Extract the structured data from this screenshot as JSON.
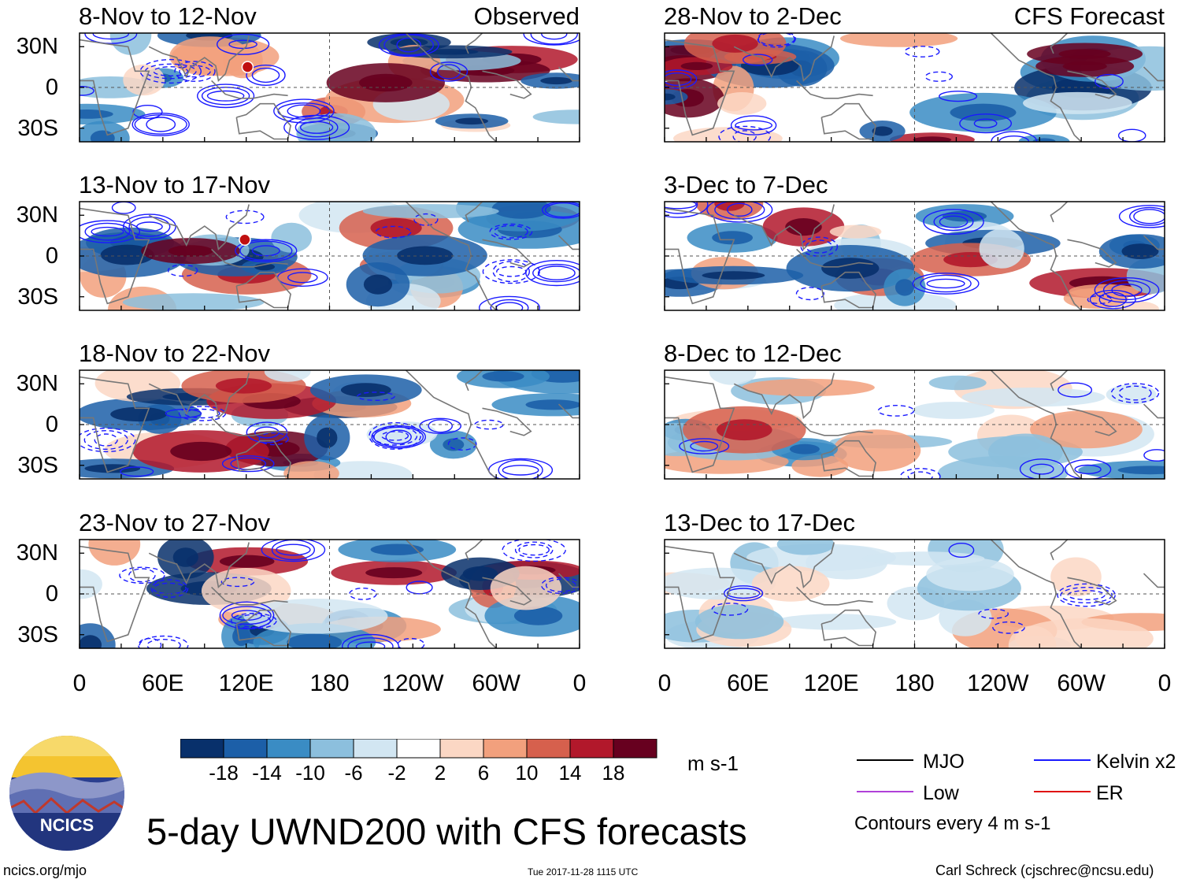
{
  "chart_data": {
    "type": "heatmap",
    "title": "5-day UWND200 with CFS forecasts",
    "variable": "UWND200",
    "units": "m s-1",
    "columns": [
      {
        "label": "Observed",
        "panels": [
          "8-Nov to 12-Nov",
          "13-Nov to 17-Nov",
          "18-Nov to 22-Nov",
          "23-Nov to 27-Nov"
        ]
      },
      {
        "label": "CFS Forecast",
        "panels": [
          "28-Nov to 2-Dec",
          "3-Dec to 7-Dec",
          "8-Dec to 12-Dec",
          "13-Dec to 17-Dec"
        ]
      }
    ],
    "x_ticks": [
      "0",
      "60E",
      "120E",
      "180",
      "120W",
      "60W",
      "0"
    ],
    "x_range_deg_east": [
      0,
      360
    ],
    "y_ticks": [
      "30N",
      "0",
      "30S"
    ],
    "y_range_lat": [
      -40,
      40
    ],
    "colorbar": {
      "labels": [
        "-18",
        "-14",
        "-10",
        "-6",
        "-2",
        "2",
        "6",
        "10",
        "14",
        "18"
      ],
      "colors": [
        "#08306b",
        "#1c5fa8",
        "#3a8cc4",
        "#8cbfdd",
        "#d2e6f2",
        "#ffffff",
        "#fbd7c4",
        "#f2a07d",
        "#d6604d",
        "#b2182b",
        "#67001f"
      ]
    },
    "legend": [
      {
        "name": "MJO",
        "color": "#000000"
      },
      {
        "name": "Kelvin x2",
        "color": "#1a1aff"
      },
      {
        "name": "Low",
        "color": "#b040d8"
      },
      {
        "name": "ER",
        "color": "#e01010"
      }
    ],
    "contour_note": "Contours every 4 m s-1",
    "tc_markers": [
      {
        "panel": 0,
        "lon": 121,
        "lat": 15
      },
      {
        "panel": 1,
        "lon": 119,
        "lat": 12
      }
    ]
  },
  "footer": {
    "logo_text": "NCICS",
    "url": "ncics.org/mjo",
    "timestamp": "Tue 2017-11-28 1115 UTC",
    "credit": "Carl Schreck (cjschrec@ncsu.edu)"
  }
}
